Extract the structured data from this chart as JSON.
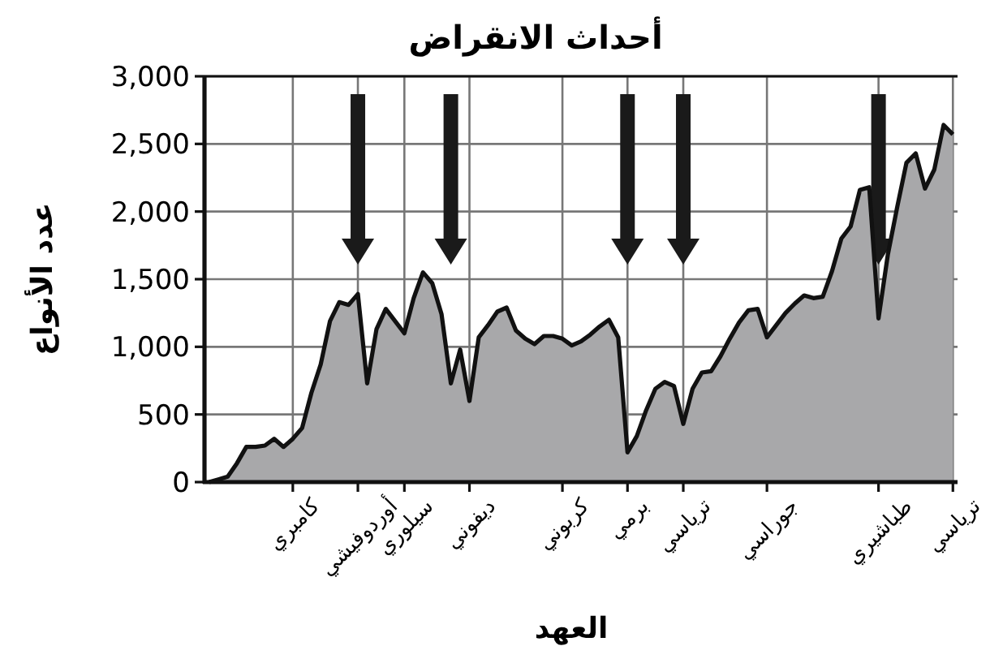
{
  "chart_data": {
    "type": "area",
    "title": "أحداث الانقراض",
    "xlabel": "العهد",
    "ylabel": "عدد الأنواع",
    "categories": [
      null,
      null,
      null,
      null,
      null,
      null,
      null,
      null,
      null,
      "كامبري",
      null,
      null,
      null,
      null,
      null,
      null,
      "أوردوفيشي",
      null,
      null,
      null,
      null,
      "سيلوري",
      null,
      null,
      null,
      null,
      null,
      null,
      "ديفوني",
      null,
      null,
      null,
      null,
      null,
      null,
      null,
      null,
      null,
      "كربوني",
      null,
      null,
      null,
      null,
      null,
      null,
      "برمي",
      null,
      null,
      null,
      null,
      null,
      "ترياسي",
      null,
      null,
      null,
      null,
      null,
      null,
      null,
      null,
      "جوراسي",
      null,
      null,
      null,
      null,
      null,
      null,
      null,
      null,
      null,
      null,
      null,
      "طباشيري",
      null,
      null,
      null,
      null,
      null,
      null,
      null,
      "ترياسي"
    ],
    "values": [
      0,
      20,
      40,
      140,
      260,
      260,
      270,
      320,
      260,
      320,
      400,
      660,
      870,
      1190,
      1330,
      1310,
      1390,
      730,
      1130,
      1280,
      1190,
      1100,
      1360,
      1550,
      1470,
      1240,
      730,
      980,
      600,
      1070,
      1160,
      1260,
      1290,
      1120,
      1060,
      1020,
      1080,
      1080,
      1060,
      1010,
      1040,
      1090,
      1150,
      1200,
      1070,
      220,
      340,
      530,
      690,
      740,
      710,
      430,
      690,
      810,
      820,
      930,
      1060,
      1180,
      1270,
      1280,
      1070,
      1160,
      1250,
      1320,
      1380,
      1360,
      1370,
      1560,
      1800,
      1890,
      2160,
      2180,
      1210,
      1680,
      2030,
      2360,
      2430,
      2170,
      2310,
      2640,
      2570
    ],
    "color": "#a8a8aa",
    "ylim": [
      0,
      3000
    ],
    "yticks": [
      {
        "value": 0,
        "label": "0"
      },
      {
        "value": 500,
        "label": "500"
      },
      {
        "value": 1000,
        "label": "1,000"
      },
      {
        "value": 1500,
        "label": "1,500"
      },
      {
        "value": 2000,
        "label": "2,000"
      },
      {
        "value": 2500,
        "label": "2,500"
      },
      {
        "value": 3000,
        "label": "3,000"
      }
    ],
    "grid": true
  }
}
